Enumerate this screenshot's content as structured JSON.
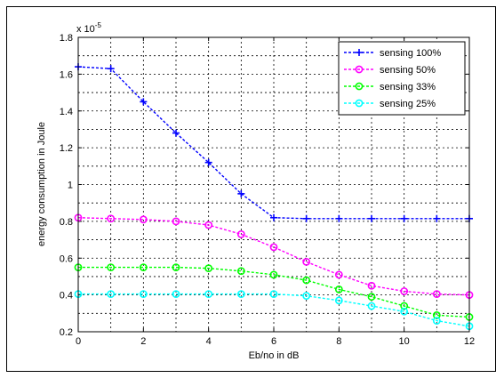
{
  "chart_data": {
    "type": "line",
    "title": "",
    "xlabel": "Eb/no in dB",
    "ylabel": "energy consumption in Joule",
    "y_exponent_label": "x 10",
    "y_exponent_power": "-5",
    "xlim": [
      0,
      12
    ],
    "ylim": [
      0.2,
      1.8
    ],
    "x_ticks": [
      "0",
      "2",
      "4",
      "6",
      "8",
      "10",
      "12"
    ],
    "y_ticks": [
      "0.2",
      "0.4",
      "0.6",
      "0.8",
      "1",
      "1.2",
      "1.4",
      "1.6",
      "1.8"
    ],
    "grid": true,
    "legend_position": "top-right",
    "x": [
      0,
      1,
      2,
      3,
      4,
      5,
      6,
      7,
      8,
      9,
      10,
      11,
      12
    ],
    "series": [
      {
        "name": "sensing 100%",
        "color": "#0000ff",
        "marker": "plus",
        "values": [
          1.64,
          1.63,
          1.45,
          1.28,
          1.12,
          0.95,
          0.82,
          0.815,
          0.815,
          0.815,
          0.815,
          0.815,
          0.815
        ]
      },
      {
        "name": "sensing 50%",
        "color": "#ff00ff",
        "marker": "circle",
        "values": [
          0.82,
          0.815,
          0.81,
          0.8,
          0.78,
          0.73,
          0.66,
          0.58,
          0.51,
          0.45,
          0.42,
          0.405,
          0.4
        ]
      },
      {
        "name": "sensing 33%",
        "color": "#00ff00",
        "marker": "circle",
        "values": [
          0.55,
          0.55,
          0.55,
          0.55,
          0.545,
          0.53,
          0.51,
          0.48,
          0.43,
          0.39,
          0.34,
          0.29,
          0.28
        ]
      },
      {
        "name": "sensing 25%",
        "color": "#00ffff",
        "marker": "circle",
        "values": [
          0.405,
          0.405,
          0.405,
          0.405,
          0.405,
          0.405,
          0.405,
          0.395,
          0.37,
          0.34,
          0.31,
          0.26,
          0.23
        ]
      }
    ]
  }
}
